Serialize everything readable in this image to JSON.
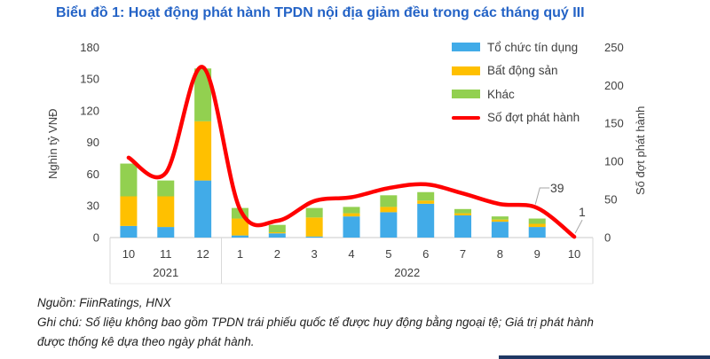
{
  "title": "Biểu đồ 1: Hoạt động phát hành TPDN nội địa giảm đều trong các tháng quý III",
  "footer": {
    "source": "Nguồn: FiinRatings, HNX",
    "note_line1": "Ghi chú: Số liệu không bao gồm TPDN trái phiếu quốc tế được huy động bằng ngoại tệ; Giá trị phát hành",
    "note_line2": "được thống kê dựa theo ngày phát hành."
  },
  "chart_data": {
    "type": "bar",
    "subtype": "stacked-bar-with-secondary-axis-line",
    "categories": [
      "10",
      "11",
      "12",
      "1",
      "2",
      "3",
      "4",
      "5",
      "6",
      "7",
      "8",
      "9",
      "10"
    ],
    "year_groups": [
      {
        "label": "2021",
        "span": 3
      },
      {
        "label": "2022",
        "span": 10
      }
    ],
    "series": [
      {
        "name": "Tổ chức tín dụng",
        "color": "#41ABE8",
        "values": [
          11,
          10,
          54,
          2,
          4,
          1,
          20,
          24,
          32,
          21,
          15,
          10,
          0
        ]
      },
      {
        "name": "Bất động sản",
        "color": "#FFC000",
        "values": [
          28,
          29,
          56,
          16,
          1,
          18,
          3,
          5,
          3,
          2,
          2,
          3,
          0
        ]
      },
      {
        "name": "Khác",
        "color": "#92D050",
        "values": [
          31,
          15,
          50,
          10,
          7,
          9,
          6,
          11,
          8,
          4,
          3,
          5,
          0
        ]
      }
    ],
    "line": {
      "name": "Số đợt phát hành",
      "color": "#FF0000",
      "axis": "right",
      "values": [
        105,
        85,
        224,
        37,
        22,
        48,
        53,
        65,
        70,
        58,
        44,
        39,
        1
      ]
    },
    "left_axis": {
      "label": "Nghìn tỷ VNĐ",
      "ticks": [
        0,
        30,
        60,
        90,
        120,
        150,
        180
      ],
      "min": 0,
      "max": 180
    },
    "right_axis": {
      "label": "Số đợt phát hành",
      "ticks": [
        0,
        50,
        100,
        150,
        200,
        250
      ],
      "min": 0,
      "max": 250
    },
    "annotations": [
      {
        "label": "39",
        "category_index": 11
      },
      {
        "label": "1",
        "category_index": 12
      }
    ],
    "grid": false,
    "legend_position": "top-right-inside",
    "colors": {
      "title": "#2463C6",
      "axis_text": "#404040",
      "band_border": "#D9D9D9"
    }
  }
}
